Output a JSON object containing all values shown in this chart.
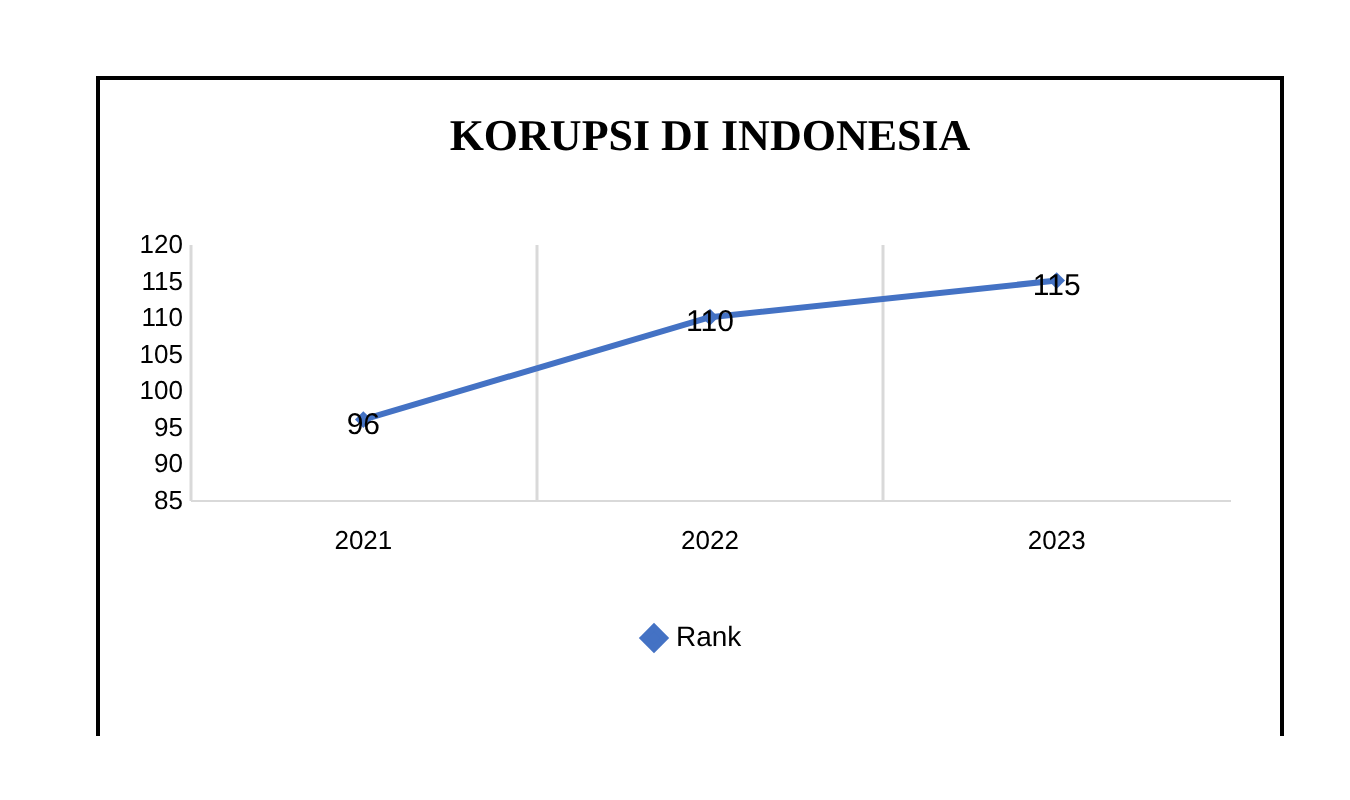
{
  "chart_data": {
    "type": "line",
    "title": "KORUPSI DI INDONESIA",
    "categories": [
      "2021",
      "2022",
      "2023"
    ],
    "series": [
      {
        "name": "Rank",
        "color": "#4472c4",
        "values": [
          96,
          110,
          115
        ]
      }
    ],
    "ylim": [
      85,
      120
    ],
    "yticks": [
      85,
      90,
      95,
      100,
      105,
      110,
      115,
      120
    ],
    "grid": "x",
    "legend": "bottom",
    "marker": "diamond",
    "line_style": "solid",
    "data_labels": true
  }
}
